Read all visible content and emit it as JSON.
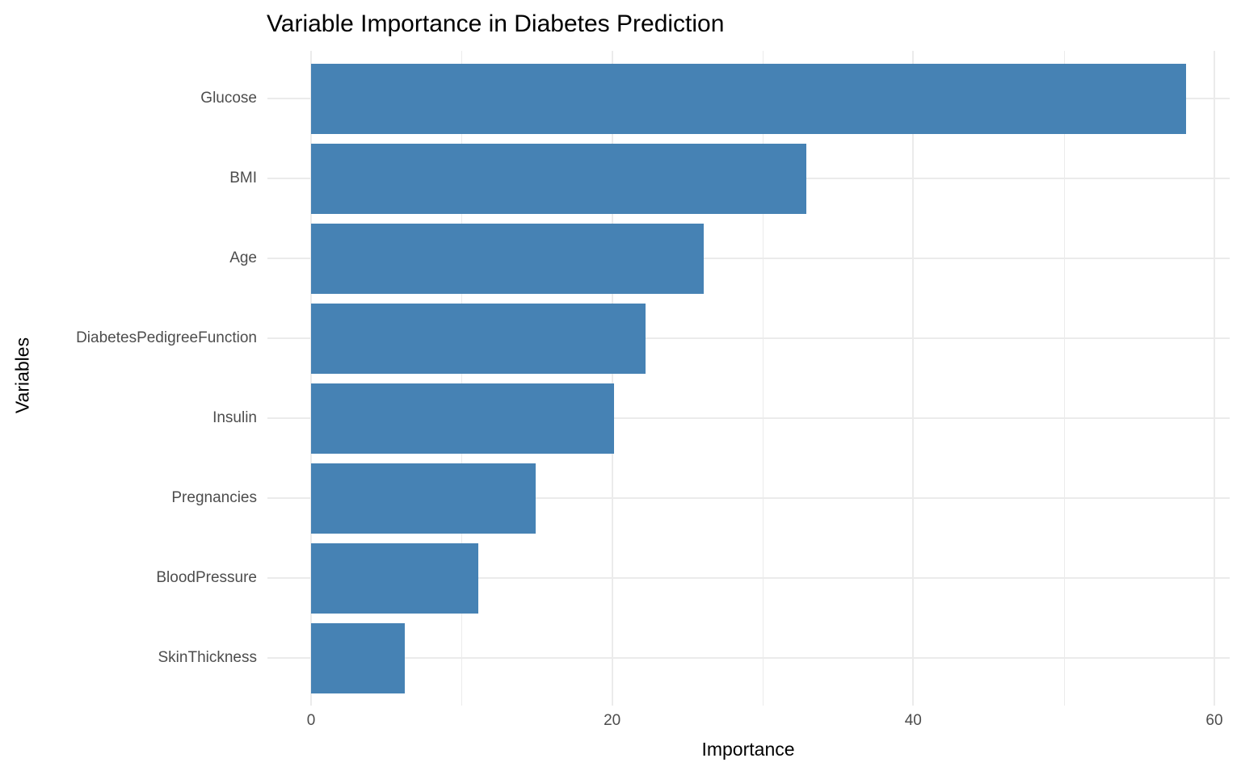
{
  "chart_data": {
    "type": "bar",
    "orientation": "horizontal",
    "title": "Variable Importance in Diabetes Prediction",
    "xlabel": "Importance",
    "ylabel": "Variables",
    "categories": [
      "Glucose",
      "BMI",
      "Age",
      "DiabetesPedigreeFunction",
      "Insulin",
      "Pregnancies",
      "BloodPressure",
      "SkinThickness"
    ],
    "values": [
      58.1,
      32.9,
      26.1,
      22.2,
      20.1,
      14.9,
      11.1,
      6.2
    ],
    "xlim": [
      0,
      60
    ],
    "xticks": [
      0,
      20,
      40,
      60
    ],
    "x_minor_ticks": [
      10,
      30,
      50
    ],
    "legend_position": "none",
    "grid": "major vertical at xticks, minor vertical between, horizontal line per category",
    "colors": {
      "bar": "#4682B4",
      "gridline": "#EBEBEB",
      "axis_text": "#4D4D4D",
      "title_text": "#000000",
      "background": "#FFFFFF"
    }
  }
}
